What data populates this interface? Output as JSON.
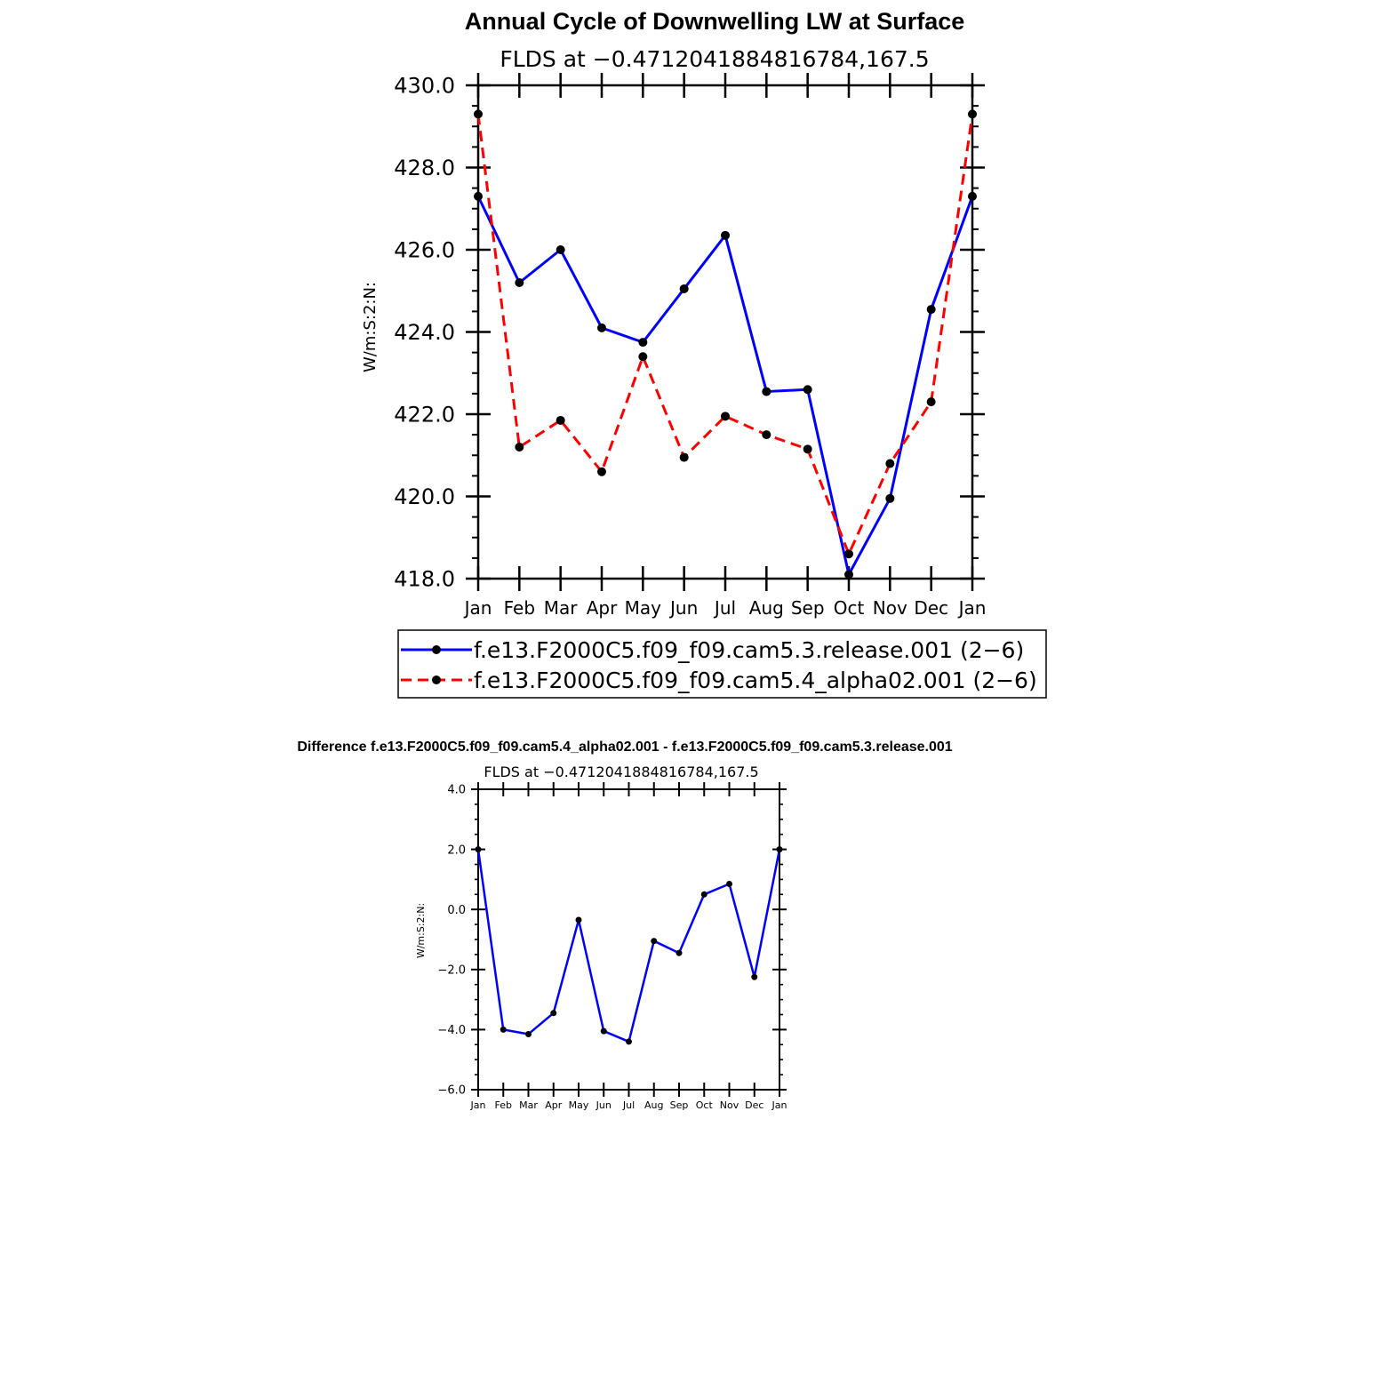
{
  "chart_data": [
    {
      "type": "line",
      "title": "Annual Cycle of Downwelling LW at Surface",
      "subtitle": "FLDS at −0.4712041884816784,167.5",
      "ylabel": "W/m:S:2:N:",
      "xlabel": "",
      "categories": [
        "Jan",
        "Feb",
        "Mar",
        "Apr",
        "May",
        "Jun",
        "Jul",
        "Aug",
        "Sep",
        "Oct",
        "Nov",
        "Dec",
        "Jan"
      ],
      "ylim": [
        418.0,
        430.0
      ],
      "yticks": [
        "418.0",
        "420.0",
        "422.0",
        "424.0",
        "426.0",
        "428.0",
        "430.0"
      ],
      "legend_position": "bottom",
      "series": [
        {
          "name": "f.e13.F2000C5.f09_f09.cam5.3.release.001 (2−6)",
          "color": "#0000ff",
          "dash": "solid",
          "values": [
            427.3,
            425.2,
            426.0,
            424.1,
            423.75,
            425.05,
            426.35,
            422.55,
            422.6,
            418.1,
            419.95,
            424.55,
            427.3
          ]
        },
        {
          "name": "f.e13.F2000C5.f09_f09.cam5.4_alpha02.001 (2−6)",
          "color": "#ff0000",
          "dash": "dashed",
          "values": [
            429.3,
            421.2,
            421.85,
            420.6,
            423.4,
            420.95,
            421.95,
            421.5,
            421.15,
            418.6,
            420.8,
            422.3,
            429.3
          ]
        }
      ]
    },
    {
      "type": "line",
      "title": "Difference f.e13.F2000C5.f09_f09.cam5.4_alpha02.001 - f.e13.F2000C5.f09_f09.cam5.3.release.001",
      "subtitle": "FLDS at −0.4712041884816784,167.5",
      "ylabel": "W/m:S:2:N:",
      "xlabel": "",
      "categories": [
        "Jan",
        "Feb",
        "Mar",
        "Apr",
        "May",
        "Jun",
        "Jul",
        "Aug",
        "Sep",
        "Oct",
        "Nov",
        "Dec",
        "Jan"
      ],
      "ylim": [
        -6.0,
        4.0
      ],
      "yticks": [
        "−6.0",
        "−4.0",
        "−2.0",
        "0.0",
        "2.0",
        "4.0"
      ],
      "series": [
        {
          "color": "#0000ff",
          "dash": "solid",
          "values": [
            2.0,
            -4.0,
            -4.15,
            -3.45,
            -0.35,
            -4.05,
            -4.4,
            -1.05,
            -1.45,
            0.5,
            0.85,
            -2.25,
            2.0
          ]
        }
      ]
    }
  ]
}
